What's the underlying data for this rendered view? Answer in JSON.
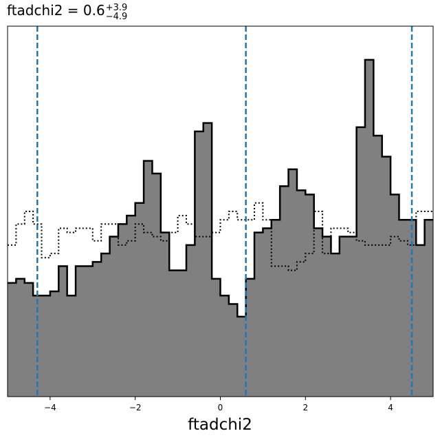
{
  "chart_data": {
    "type": "histogram",
    "title": {
      "main": "ftadchi2 = 0.6",
      "upper": "+3.9",
      "lower": "−4.9"
    },
    "xlabel": "ftadchi2",
    "ylabel": "",
    "xlim": [
      -5.0,
      5.0
    ],
    "ylim": [
      0,
      88
    ],
    "y_ticks_shown": false,
    "grid": false,
    "x_ticks": [
      {
        "value": -4,
        "label": "−4"
      },
      {
        "value": -2,
        "label": "−2"
      },
      {
        "value": 0,
        "label": "0"
      },
      {
        "value": 2,
        "label": "2"
      },
      {
        "value": 4,
        "label": "4"
      }
    ],
    "bin_edges": [
      -5.0,
      -4.8,
      -4.6,
      -4.4,
      -4.2,
      -4.0,
      -3.8,
      -3.6,
      -3.4,
      -3.2,
      -3.0,
      -2.8,
      -2.6,
      -2.4,
      -2.2,
      -2.0,
      -1.8,
      -1.6,
      -1.4,
      -1.2,
      -1.0,
      -0.8,
      -0.6,
      -0.4,
      -0.2,
      0.0,
      0.2,
      0.4,
      0.6,
      0.8,
      1.0,
      1.2,
      1.4,
      1.6,
      1.8,
      2.0,
      2.2,
      2.4,
      2.6,
      2.8,
      3.0,
      3.2,
      3.4,
      3.6,
      3.8,
      4.0,
      4.2,
      4.4,
      4.6,
      4.8,
      5.0
    ],
    "series": [
      {
        "style": "filled",
        "fill": "#808080",
        "edge": "#000000",
        "counts": [
          27,
          28,
          27,
          24,
          24,
          25,
          31,
          24,
          31,
          31,
          32,
          34,
          38,
          41,
          43,
          46,
          56,
          53,
          39,
          30,
          30,
          36,
          63,
          65,
          28,
          24,
          22,
          19,
          28,
          39,
          40,
          42,
          50,
          54,
          49,
          48,
          40,
          38,
          34,
          38,
          38,
          64,
          80,
          62,
          57,
          48,
          42,
          42,
          36,
          42
        ]
      },
      {
        "style": "dotted",
        "fill": "none",
        "edge": "#000000",
        "counts": [
          36,
          41,
          44,
          41,
          33,
          34,
          40,
          39,
          40,
          40,
          37,
          41,
          41,
          36,
          37,
          41,
          39,
          38,
          37,
          39,
          43,
          41,
          38,
          38,
          39,
          42,
          44,
          42,
          42,
          46,
          42,
          31,
          31,
          30,
          32,
          34,
          44,
          34,
          40,
          40,
          39,
          37,
          36,
          36,
          36,
          38,
          37,
          36,
          44,
          44
        ]
      }
    ],
    "vlines": {
      "color": "#1f77b4",
      "style": "dashed",
      "x": [
        -4.3,
        0.6,
        4.5
      ]
    }
  }
}
